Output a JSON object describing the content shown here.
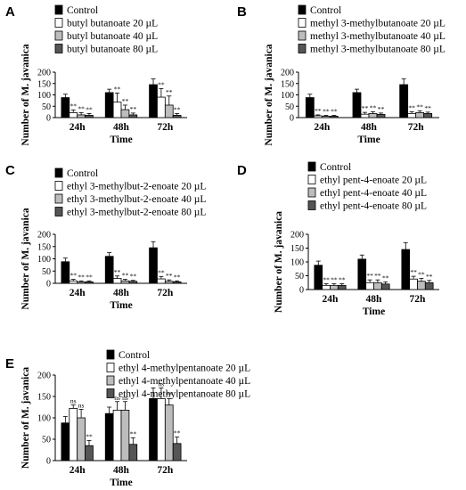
{
  "chart_data": [
    {
      "panel": "A",
      "type": "bar",
      "categories": [
        "24h",
        "48h",
        "72h"
      ],
      "xlabel": "Time",
      "ylabel": "Number of M. javanica",
      "ylim": [
        0,
        200
      ],
      "yticks": [
        0,
        50,
        100,
        150,
        200
      ],
      "legend_position": "top-left",
      "series": [
        {
          "name": "Control",
          "color": "#000000",
          "values": [
            88,
            110,
            145
          ],
          "errors": [
            15,
            15,
            25
          ],
          "sig": [
            "",
            "",
            ""
          ]
        },
        {
          "name": "butyl butanoate 20 µL",
          "color": "#ffffff",
          "values": [
            22,
            68,
            90
          ],
          "errors": [
            12,
            40,
            38
          ],
          "sig": [
            "**",
            "**",
            "**"
          ]
        },
        {
          "name": "butyl butanoate 40 µL",
          "color": "#bdbdbd",
          "values": [
            12,
            35,
            55
          ],
          "errors": [
            10,
            20,
            40
          ],
          "sig": [
            "**",
            "**",
            "**"
          ]
        },
        {
          "name": "butyl butanoate 80 µL",
          "color": "#555555",
          "values": [
            10,
            12,
            10
          ],
          "errors": [
            8,
            8,
            8
          ],
          "sig": [
            "**",
            "**",
            "**"
          ]
        }
      ]
    },
    {
      "panel": "B",
      "type": "bar",
      "categories": [
        "24h",
        "48h",
        "72h"
      ],
      "xlabel": "Time",
      "ylabel": "Number of M. javanica",
      "ylim": [
        0,
        200
      ],
      "yticks": [
        0,
        50,
        100,
        150,
        200
      ],
      "legend_position": "top-left",
      "series": [
        {
          "name": "Control",
          "color": "#000000",
          "values": [
            88,
            110,
            145
          ],
          "errors": [
            15,
            15,
            25
          ],
          "sig": [
            "",
            "",
            ""
          ]
        },
        {
          "name": "methyl 3-methylbutanoate 20 µL",
          "color": "#ffffff",
          "values": [
            8,
            15,
            18
          ],
          "errors": [
            4,
            8,
            8
          ],
          "sig": [
            "**",
            "**",
            "**"
          ]
        },
        {
          "name": "methyl 3-methylbutanoate 40 µL",
          "color": "#bdbdbd",
          "values": [
            6,
            18,
            22
          ],
          "errors": [
            4,
            8,
            8
          ],
          "sig": [
            "**",
            "**",
            "**"
          ]
        },
        {
          "name": "methyl 3-methylbutanoate 80 µL",
          "color": "#555555",
          "values": [
            6,
            14,
            18
          ],
          "errors": [
            4,
            6,
            6
          ],
          "sig": [
            "**",
            "**",
            "**"
          ]
        }
      ]
    },
    {
      "panel": "C",
      "type": "bar",
      "categories": [
        "24h",
        "48h",
        "72h"
      ],
      "xlabel": "Time",
      "ylabel": "Number of M. javanica",
      "ylim": [
        0,
        200
      ],
      "yticks": [
        0,
        50,
        100,
        150,
        200
      ],
      "legend_position": "top-left",
      "series": [
        {
          "name": "Control",
          "color": "#000000",
          "values": [
            88,
            110,
            145
          ],
          "errors": [
            15,
            15,
            25
          ],
          "sig": [
            "",
            "",
            ""
          ]
        },
        {
          "name": "ethyl 3-methylbut-2-enoate 20 µL",
          "color": "#ffffff",
          "values": [
            10,
            20,
            18
          ],
          "errors": [
            6,
            10,
            10
          ],
          "sig": [
            "**",
            "**",
            "**"
          ]
        },
        {
          "name": "ethyl 3-methylbut-2-enoate 40 µL",
          "color": "#bdbdbd",
          "values": [
            6,
            10,
            8
          ],
          "errors": [
            4,
            6,
            6
          ],
          "sig": [
            "**",
            "**",
            "**"
          ]
        },
        {
          "name": "ethyl 3-methylbut-2-enoate 80 µL",
          "color": "#555555",
          "values": [
            6,
            8,
            6
          ],
          "errors": [
            4,
            4,
            4
          ],
          "sig": [
            "**",
            "**",
            "**"
          ]
        }
      ]
    },
    {
      "panel": "D",
      "type": "bar",
      "categories": [
        "24h",
        "48h",
        "72h"
      ],
      "xlabel": "Time",
      "ylabel": "Number of M. javanica",
      "ylim": [
        0,
        200
      ],
      "yticks": [
        0,
        50,
        100,
        150,
        200
      ],
      "legend_position": "top-left",
      "series": [
        {
          "name": "Control",
          "color": "#000000",
          "values": [
            88,
            110,
            145
          ],
          "errors": [
            15,
            15,
            25
          ],
          "sig": [
            "",
            "",
            ""
          ]
        },
        {
          "name": "ethyl pent-4-enoate 20 µL",
          "color": "#ffffff",
          "values": [
            15,
            25,
            38
          ],
          "errors": [
            6,
            10,
            10
          ],
          "sig": [
            "**",
            "**",
            "**"
          ]
        },
        {
          "name": "ethyl pent-4-enoate 40 µL",
          "color": "#bdbdbd",
          "values": [
            15,
            25,
            30
          ],
          "errors": [
            6,
            10,
            10
          ],
          "sig": [
            "**",
            "**",
            "**"
          ]
        },
        {
          "name": "ethyl pent-4-enoate 80 µL",
          "color": "#555555",
          "values": [
            15,
            20,
            25
          ],
          "errors": [
            6,
            8,
            8
          ],
          "sig": [
            "**",
            "**",
            "**"
          ]
        }
      ]
    },
    {
      "panel": "E",
      "type": "bar",
      "categories": [
        "24h",
        "48h",
        "72h"
      ],
      "xlabel": "Time",
      "ylabel": "Number of M. javanica",
      "ylim": [
        0,
        200
      ],
      "yticks": [
        0,
        50,
        100,
        150,
        200
      ],
      "legend_position": "top-left",
      "series": [
        {
          "name": "Control",
          "color": "#000000",
          "values": [
            88,
            110,
            145
          ],
          "errors": [
            15,
            15,
            25
          ],
          "sig": [
            "",
            "",
            ""
          ]
        },
        {
          "name": "ethyl 4-methylpentanoate 20 µL",
          "color": "#ffffff",
          "values": [
            122,
            118,
            145
          ],
          "errors": [
            8,
            20,
            25
          ],
          "sig": [
            "ns",
            "ns",
            "ns"
          ]
        },
        {
          "name": "ethyl 4-methylpentanoate 40 µL",
          "color": "#bdbdbd",
          "values": [
            100,
            118,
            130
          ],
          "errors": [
            20,
            20,
            15
          ],
          "sig": [
            "ns",
            "ns",
            "**"
          ]
        },
        {
          "name": "ethyl 4-methylpentanoate 80 µL",
          "color": "#555555",
          "values": [
            35,
            38,
            40
          ],
          "errors": [
            12,
            15,
            15
          ],
          "sig": [
            "**",
            "**",
            "**"
          ]
        }
      ]
    }
  ]
}
